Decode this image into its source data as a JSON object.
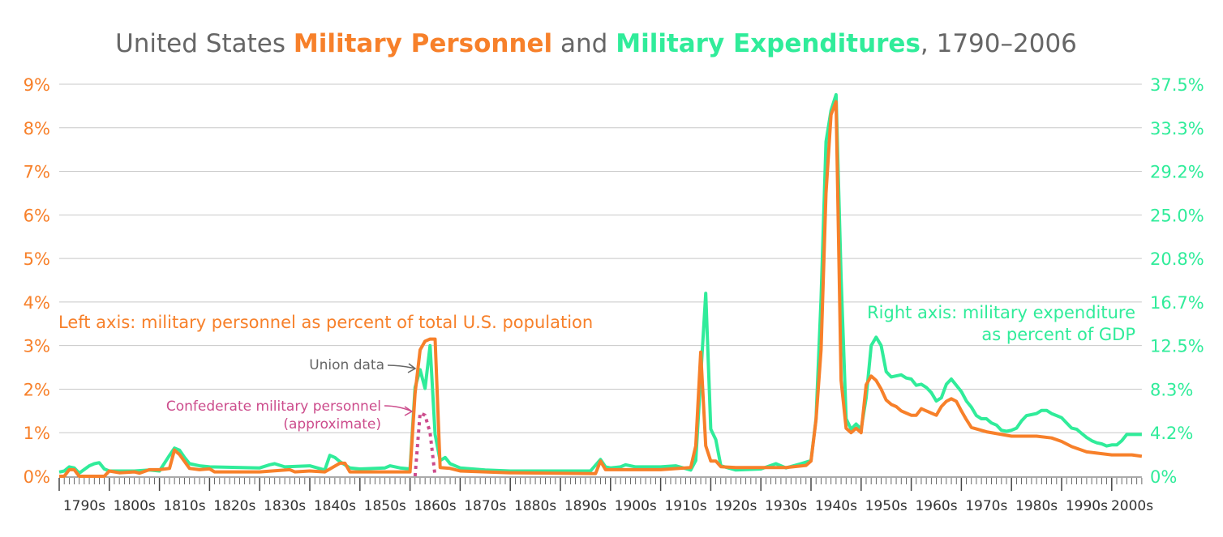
{
  "chart_data": {
    "type": "line",
    "title": {
      "part1": "United States ",
      "personnel": "Military Personnel",
      "part2": " and ",
      "expenditures": "Military Expenditures",
      "part3": ", 1790–2006"
    },
    "colors": {
      "personnel": "#f7802a",
      "expenditure": "#30ec9a",
      "confederate": "#cc4c8c",
      "text": "#666666",
      "grid": "#c8c8c8"
    },
    "left_axis": {
      "ylim": [
        0,
        9
      ],
      "ticks": [
        "0%",
        "1%",
        "2%",
        "3%",
        "4%",
        "5%",
        "6%",
        "7%",
        "8%",
        "9%"
      ],
      "label": "Left axis: military personnel as percent of total U.S. population"
    },
    "right_axis": {
      "ylim": [
        0,
        37.5
      ],
      "ticks": [
        "0%",
        "4.2%",
        "8.3%",
        "12.5%",
        "16.7%",
        "20.8%",
        "25.0%",
        "29.2%",
        "33.3%",
        "37.5%"
      ],
      "label_line1": "Right axis: military expenditure",
      "label_line2": "as percent of GDP"
    },
    "x_axis": {
      "range": [
        1790,
        2006
      ],
      "tick_labels": [
        "1790s",
        "1800s",
        "1810s",
        "1820s",
        "1830s",
        "1840s",
        "1850s",
        "1860s",
        "1870s",
        "1880s",
        "1890s",
        "1900s",
        "1910s",
        "1920s",
        "1930s",
        "1940s",
        "1950s",
        "1960s",
        "1970s",
        "1980s",
        "1990s",
        "2000s"
      ]
    },
    "grid": true,
    "annotations": {
      "union": "Union data",
      "confederate_line1": "Confederate military personnel",
      "confederate_line2": "(approximate)"
    },
    "series": [
      {
        "name": "Military Personnel",
        "axis": "left",
        "points": [
          [
            1790,
            0
          ],
          [
            1791,
            0
          ],
          [
            1792,
            0.15
          ],
          [
            1793,
            0.15
          ],
          [
            1794,
            0
          ],
          [
            1799,
            0
          ],
          [
            1800,
            0.12
          ],
          [
            1802,
            0.08
          ],
          [
            1805,
            0.1
          ],
          [
            1806,
            0.07
          ],
          [
            1808,
            0.15
          ],
          [
            1810,
            0.15
          ],
          [
            1812,
            0.18
          ],
          [
            1813,
            0.6
          ],
          [
            1814,
            0.5
          ],
          [
            1816,
            0.18
          ],
          [
            1818,
            0.15
          ],
          [
            1820,
            0.17
          ],
          [
            1821,
            0.1
          ],
          [
            1830,
            0.1
          ],
          [
            1836,
            0.15
          ],
          [
            1837,
            0.1
          ],
          [
            1840,
            0.12
          ],
          [
            1843,
            0.1
          ],
          [
            1846,
            0.3
          ],
          [
            1847,
            0.3
          ],
          [
            1848,
            0.1
          ],
          [
            1860,
            0.1
          ],
          [
            1861,
            1.9
          ],
          [
            1862,
            2.9
          ],
          [
            1863,
            3.1
          ],
          [
            1864,
            3.15
          ],
          [
            1865,
            3.15
          ],
          [
            1866,
            0.2
          ],
          [
            1868,
            0.18
          ],
          [
            1870,
            0.12
          ],
          [
            1880,
            0.08
          ],
          [
            1897,
            0.06
          ],
          [
            1898,
            0.35
          ],
          [
            1899,
            0.15
          ],
          [
            1900,
            0.15
          ],
          [
            1910,
            0.15
          ],
          [
            1916,
            0.2
          ],
          [
            1917,
            0.7
          ],
          [
            1918,
            2.85
          ],
          [
            1919,
            0.7
          ],
          [
            1920,
            0.35
          ],
          [
            1921,
            0.35
          ],
          [
            1922,
            0.22
          ],
          [
            1925,
            0.2
          ],
          [
            1935,
            0.2
          ],
          [
            1939,
            0.25
          ],
          [
            1940,
            0.35
          ],
          [
            1941,
            1.3
          ],
          [
            1942,
            2.9
          ],
          [
            1943,
            6.5
          ],
          [
            1944,
            8.3
          ],
          [
            1945,
            8.6
          ],
          [
            1946,
            2.2
          ],
          [
            1947,
            1.1
          ],
          [
            1948,
            1.0
          ],
          [
            1949,
            1.1
          ],
          [
            1950,
            1.0
          ],
          [
            1951,
            2.1
          ],
          [
            1952,
            2.3
          ],
          [
            1953,
            2.2
          ],
          [
            1954,
            2.0
          ],
          [
            1955,
            1.75
          ],
          [
            1956,
            1.65
          ],
          [
            1957,
            1.6
          ],
          [
            1958,
            1.5
          ],
          [
            1959,
            1.45
          ],
          [
            1960,
            1.4
          ],
          [
            1961,
            1.4
          ],
          [
            1962,
            1.55
          ],
          [
            1963,
            1.5
          ],
          [
            1964,
            1.45
          ],
          [
            1965,
            1.4
          ],
          [
            1966,
            1.6
          ],
          [
            1967,
            1.72
          ],
          [
            1968,
            1.78
          ],
          [
            1969,
            1.72
          ],
          [
            1970,
            1.5
          ],
          [
            1971,
            1.3
          ],
          [
            1972,
            1.12
          ],
          [
            1975,
            1.02
          ],
          [
            1980,
            0.92
          ],
          [
            1985,
            0.92
          ],
          [
            1988,
            0.88
          ],
          [
            1990,
            0.8
          ],
          [
            1992,
            0.68
          ],
          [
            1995,
            0.56
          ],
          [
            2000,
            0.49
          ],
          [
            2004,
            0.49
          ],
          [
            2006,
            0.46
          ]
        ]
      },
      {
        "name": "Military Expenditures",
        "axis": "right",
        "points": [
          [
            1790,
            0.4
          ],
          [
            1791,
            0.5
          ],
          [
            1792,
            0.9
          ],
          [
            1793,
            0.8
          ],
          [
            1794,
            0.3
          ],
          [
            1796,
            1.0
          ],
          [
            1797,
            1.2
          ],
          [
            1798,
            1.3
          ],
          [
            1799,
            0.7
          ],
          [
            1800,
            0.5
          ],
          [
            1805,
            0.5
          ],
          [
            1808,
            0.6
          ],
          [
            1810,
            0.5
          ],
          [
            1812,
            2.0
          ],
          [
            1813,
            2.7
          ],
          [
            1814,
            2.5
          ],
          [
            1815,
            1.8
          ],
          [
            1816,
            1.2
          ],
          [
            1818,
            1.0
          ],
          [
            1820,
            0.9
          ],
          [
            1830,
            0.8
          ],
          [
            1832,
            1.1
          ],
          [
            1833,
            1.2
          ],
          [
            1835,
            0.9
          ],
          [
            1840,
            1.0
          ],
          [
            1843,
            0.6
          ],
          [
            1844,
            2.0
          ],
          [
            1845,
            1.8
          ],
          [
            1846,
            1.4
          ],
          [
            1848,
            0.8
          ],
          [
            1850,
            0.7
          ],
          [
            1855,
            0.8
          ],
          [
            1856,
            1.0
          ],
          [
            1858,
            0.8
          ],
          [
            1860,
            0.7
          ],
          [
            1861,
            8.5
          ],
          [
            1862,
            10.2
          ],
          [
            1863,
            8.4
          ],
          [
            1864,
            12.5
          ],
          [
            1865,
            4.0
          ],
          [
            1866,
            1.5
          ],
          [
            1867,
            1.8
          ],
          [
            1868,
            1.2
          ],
          [
            1870,
            0.8
          ],
          [
            1875,
            0.6
          ],
          [
            1880,
            0.5
          ],
          [
            1890,
            0.5
          ],
          [
            1896,
            0.5
          ],
          [
            1898,
            1.6
          ],
          [
            1899,
            0.9
          ],
          [
            1900,
            0.8
          ],
          [
            1902,
            0.9
          ],
          [
            1903,
            1.1
          ],
          [
            1905,
            0.9
          ],
          [
            1910,
            0.9
          ],
          [
            1913,
            1.0
          ],
          [
            1916,
            0.6
          ],
          [
            1917,
            1.5
          ],
          [
            1918,
            9.5
          ],
          [
            1919,
            17.5
          ],
          [
            1920,
            4.5
          ],
          [
            1921,
            3.5
          ],
          [
            1922,
            1.0
          ],
          [
            1925,
            0.6
          ],
          [
            1930,
            0.7
          ],
          [
            1933,
            1.2
          ],
          [
            1935,
            0.8
          ],
          [
            1938,
            1.2
          ],
          [
            1940,
            1.5
          ],
          [
            1941,
            5.5
          ],
          [
            1942,
            17
          ],
          [
            1943,
            32
          ],
          [
            1944,
            35
          ],
          [
            1945,
            36.5
          ],
          [
            1946,
            19
          ],
          [
            1947,
            5.5
          ],
          [
            1948,
            4.5
          ],
          [
            1949,
            5.0
          ],
          [
            1950,
            4.5
          ],
          [
            1951,
            7.5
          ],
          [
            1952,
            12.5
          ],
          [
            1953,
            13.3
          ],
          [
            1954,
            12.5
          ],
          [
            1955,
            10
          ],
          [
            1956,
            9.5
          ],
          [
            1957,
            9.6
          ],
          [
            1958,
            9.7
          ],
          [
            1959,
            9.4
          ],
          [
            1960,
            9.3
          ],
          [
            1961,
            8.7
          ],
          [
            1962,
            8.8
          ],
          [
            1963,
            8.5
          ],
          [
            1964,
            8.0
          ],
          [
            1965,
            7.2
          ],
          [
            1966,
            7.5
          ],
          [
            1967,
            8.8
          ],
          [
            1968,
            9.3
          ],
          [
            1969,
            8.7
          ],
          [
            1970,
            8.1
          ],
          [
            1971,
            7.2
          ],
          [
            1972,
            6.6
          ],
          [
            1973,
            5.8
          ],
          [
            1974,
            5.5
          ],
          [
            1975,
            5.5
          ],
          [
            1976,
            5.1
          ],
          [
            1977,
            4.9
          ],
          [
            1978,
            4.4
          ],
          [
            1979,
            4.3
          ],
          [
            1980,
            4.4
          ],
          [
            1981,
            4.6
          ],
          [
            1982,
            5.3
          ],
          [
            1983,
            5.8
          ],
          [
            1984,
            5.9
          ],
          [
            1985,
            6.0
          ],
          [
            1986,
            6.3
          ],
          [
            1987,
            6.3
          ],
          [
            1988,
            6.0
          ],
          [
            1989,
            5.8
          ],
          [
            1990,
            5.6
          ],
          [
            1991,
            5.1
          ],
          [
            1992,
            4.6
          ],
          [
            1993,
            4.5
          ],
          [
            1994,
            4.1
          ],
          [
            1995,
            3.7
          ],
          [
            1996,
            3.4
          ],
          [
            1997,
            3.2
          ],
          [
            1998,
            3.1
          ],
          [
            1999,
            2.9
          ],
          [
            2000,
            3.0
          ],
          [
            2001,
            3.0
          ],
          [
            2002,
            3.4
          ],
          [
            2003,
            4.0
          ],
          [
            2004,
            4.0
          ],
          [
            2006,
            4.0
          ]
        ]
      },
      {
        "name": "Confederate military personnel",
        "axis": "left",
        "style": "dotted",
        "points": [
          [
            1861,
            0
          ],
          [
            1862,
            1.45
          ],
          [
            1863,
            1.4
          ],
          [
            1864,
            1.0
          ],
          [
            1865,
            0
          ]
        ]
      }
    ]
  }
}
